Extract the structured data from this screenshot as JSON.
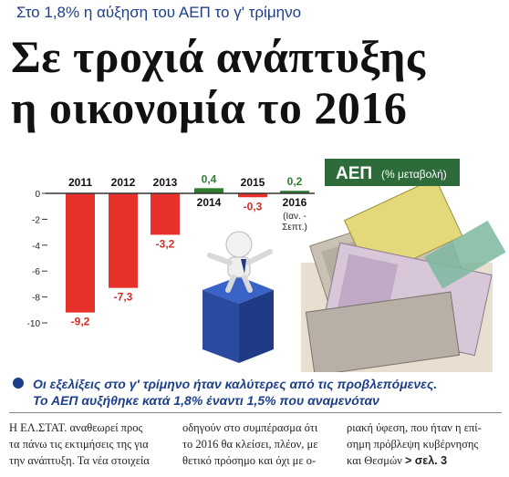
{
  "article": {
    "kicker": "Στο 1,8% η αύξηση του ΑΕΠ το γ' τρίμηνο",
    "headline_line1": "Σε τροχιά ανάπτυξης",
    "headline_line2": "η οικονομία το 2016",
    "summary_line1": "Οι εξελίξεις στο γ' τρίμηνο ήταν καλύτερες από τις προβλεπόμενες.",
    "summary_line2": "Το ΑΕΠ αυξήθηκε κατά 1,8% έναντι 1,5% που αναμενόταν",
    "column1": [
      "Η ΕΛ.ΣΤΑΤ. αναθεωρεί προς",
      "τα πάνω τις εκτιμήσεις της για",
      "την ανάπτυξη. Τα νέα στοιχεία"
    ],
    "column2": [
      "οδηγούν στο συμπέρασμα ότι",
      "το 2016 θα κλείσει, πλέον, με",
      "θετικό πρόσημο και όχι με ο-"
    ],
    "column3": [
      "ριακή ύφεση, που ήταν η επί-",
      "σημη πρόβλεψη κυβέρνησης",
      "και Θεσμών"
    ],
    "page_ref": "> σελ. 3"
  },
  "chart_data": {
    "type": "bar",
    "title": "ΑΕΠ",
    "subtitle": "(% μεταβολή)",
    "categories": [
      "2011",
      "2012",
      "2013",
      "2014",
      "2015",
      "2016"
    ],
    "category_note": "(Ιαν. - Σεπτ.)",
    "values": [
      -9.2,
      -7.3,
      -3.2,
      0.4,
      -0.3,
      0.2
    ],
    "value_labels": [
      "-9,2",
      "-7,3",
      "-3,2",
      "0,4",
      "-0,3",
      "0,2"
    ],
    "y_ticks": [
      "0",
      "-2",
      "-4",
      "-6",
      "-8",
      "-10"
    ],
    "ylim": [
      -10,
      0.5
    ],
    "grid": false,
    "negative_color": "#e8312a",
    "positive_color": "#2e7d32",
    "title_bg": "#2e6b3a"
  }
}
